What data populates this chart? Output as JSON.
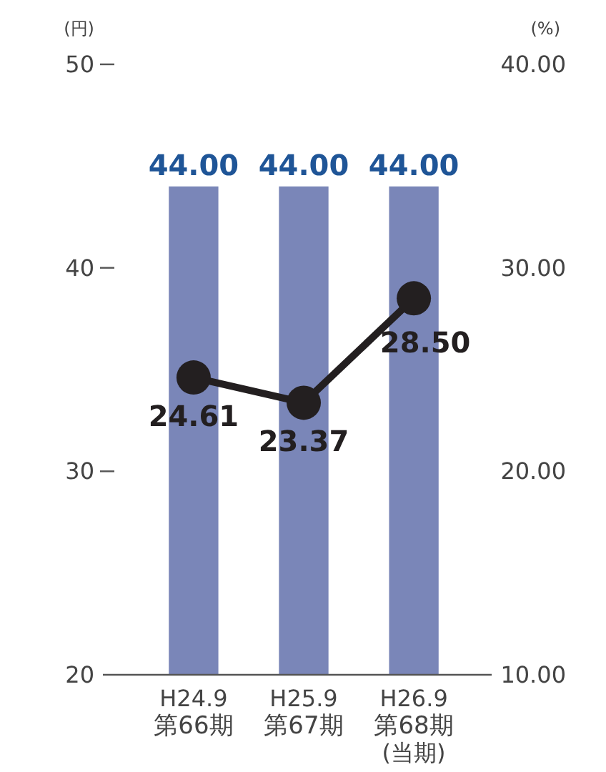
{
  "chart_data": {
    "type": "bar",
    "categories": [
      "H24.9\n第66期",
      "H25.9\n第67期",
      "H26.9\n第68期\n(当期)"
    ],
    "ylabel": "(円)",
    "y2label": "(%)",
    "series": [
      {
        "color": "#7a86b8",
        "values": [
          44.0,
          44.0,
          44.0
        ],
        "value_labels": [
          "44.00",
          "44.00",
          "44.00"
        ]
      },
      {
        "type": "line",
        "axis": "y2",
        "color": "#231f20",
        "values": [
          24.61,
          23.37,
          28.5
        ],
        "value_labels": [
          "24.61",
          "23.37",
          "28.50"
        ]
      }
    ],
    "ylim": [
      20,
      50
    ],
    "yticks": [
      50,
      40,
      30,
      20
    ],
    "y2lim": [
      10,
      40
    ],
    "y2ticks": [
      {
        "value": 40,
        "label": "40.00"
      },
      {
        "value": 30,
        "label": "30.00"
      },
      {
        "value": 20,
        "label": "20.00"
      },
      {
        "value": 10,
        "label": "10.00"
      }
    ],
    "marker": "circle",
    "grid": false
  }
}
